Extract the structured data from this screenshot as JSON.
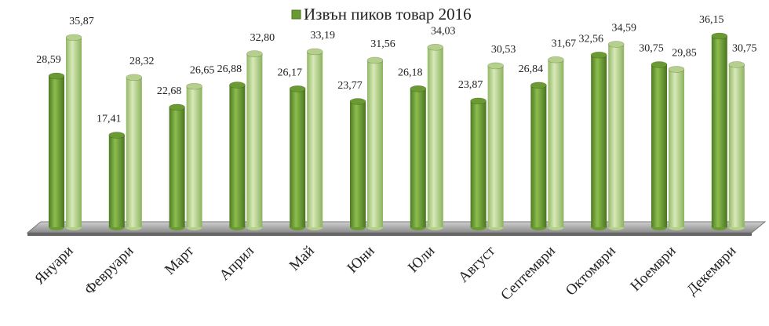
{
  "chart_data": {
    "type": "bar",
    "legend": "top",
    "categories": [
      "Януари",
      "Февруари",
      "Март",
      "Април",
      "Май",
      "Юни",
      "Юли",
      "Август",
      "Септември",
      "Октомври",
      "Ноември",
      "Декември"
    ],
    "series": [
      {
        "name": "Извън пиков товар 2016",
        "color": "#6b9a32",
        "values": [
          28.59,
          17.41,
          22.68,
          26.88,
          26.17,
          23.77,
          26.18,
          23.87,
          26.84,
          32.56,
          30.75,
          36.15
        ],
        "value_labels": [
          "28,59",
          "17,41",
          "22,68",
          "26,88",
          "26,17",
          "23,77",
          "26,18",
          "23,87",
          "26,84",
          "32,56",
          "30,75",
          "36,15"
        ]
      },
      {
        "color": "#b5d08a",
        "values": [
          35.87,
          28.32,
          26.65,
          32.8,
          33.19,
          31.56,
          34.03,
          30.53,
          31.67,
          34.59,
          29.85,
          30.75
        ],
        "value_labels": [
          "35,87",
          "28,32",
          "26,65",
          "32,80",
          "33,19",
          "31,56",
          "34,03",
          "30,53",
          "31,67",
          "34,59",
          "29,85",
          "30,75"
        ]
      }
    ],
    "ylim": [
      0,
      40
    ]
  }
}
